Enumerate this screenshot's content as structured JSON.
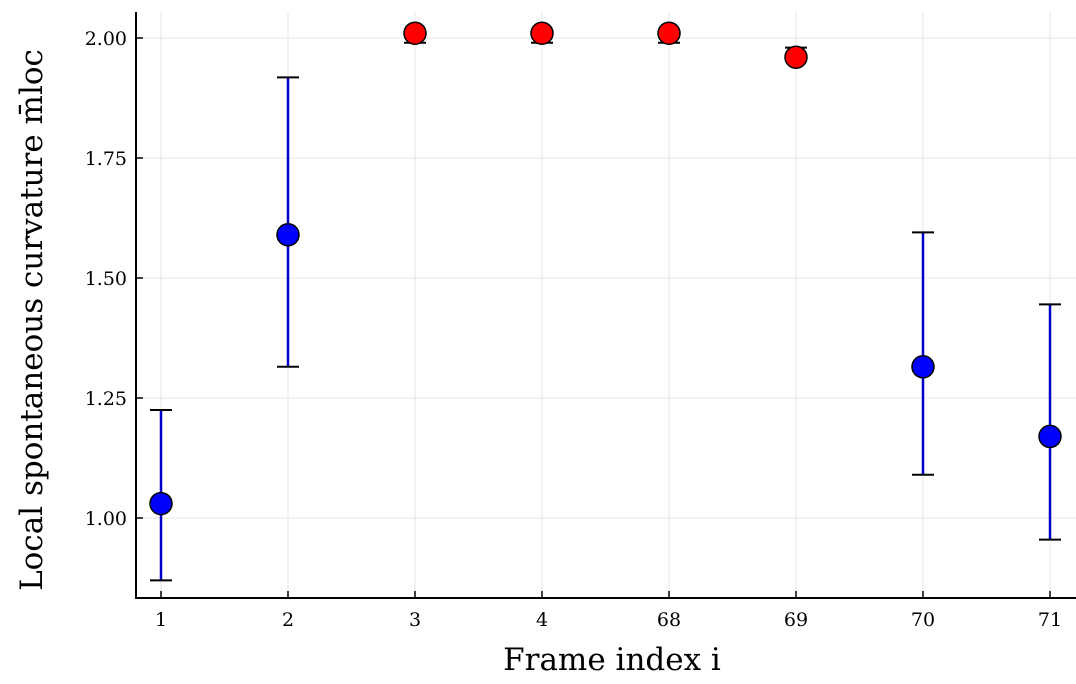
{
  "chart_data": {
    "type": "scatter",
    "title": "",
    "xlabel": "Frame index i",
    "ylabel": "Local spontaneous curvature m̄loc",
    "categories": [
      "1",
      "2",
      "3",
      "4",
      "68",
      "69",
      "70",
      "71"
    ],
    "values": [
      1.03,
      1.59,
      2.01,
      2.01,
      2.01,
      1.96,
      1.315,
      1.17
    ],
    "error_low": [
      0.87,
      1.315,
      1.99,
      1.99,
      1.99,
      1.96,
      1.09,
      0.955
    ],
    "error_high": [
      1.225,
      1.918,
      2.01,
      2.01,
      2.01,
      1.98,
      1.595,
      1.445
    ],
    "point_colors": [
      "#0000ff",
      "#0000ff",
      "#ff0000",
      "#ff0000",
      "#ff0000",
      "#ff0000",
      "#0000ff",
      "#0000ff"
    ],
    "errorbar_colors": [
      "#0000cc",
      "#0000cc",
      "#000000",
      "#000000",
      "#000000",
      "#000000",
      "#0000cc",
      "#0000cc"
    ],
    "yticks": [
      "1.00",
      "1.25",
      "1.50",
      "1.75",
      "2.00"
    ],
    "ylim": [
      0.84,
      2.05
    ],
    "grid": true,
    "legend": "none"
  }
}
